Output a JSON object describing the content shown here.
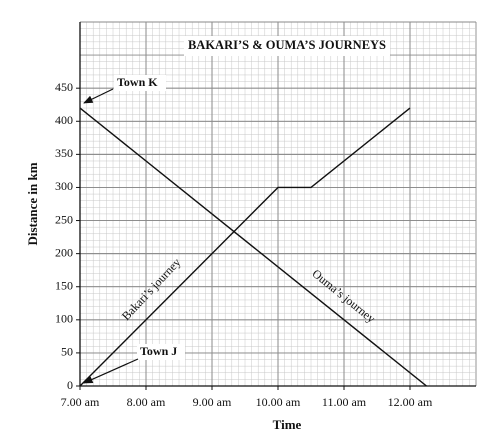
{
  "chart_data": {
    "type": "line",
    "title": "BAKARI’S & OUMA’S JOURNEYS",
    "x_label": "Time",
    "y_label": "Distance in km",
    "xlim": [
      7,
      13
    ],
    "ylim": [
      0,
      550
    ],
    "xticks": [
      {
        "value": 7,
        "label": "7.00 am"
      },
      {
        "value": 8,
        "label": "8.00 am"
      },
      {
        "value": 9,
        "label": "9.00 am"
      },
      {
        "value": 10,
        "label": "10.00 am"
      },
      {
        "value": 11,
        "label": "11.00 am"
      },
      {
        "value": 12,
        "label": "12.00 am"
      }
    ],
    "yticks": [
      0,
      50,
      100,
      150,
      200,
      250,
      300,
      350,
      400,
      450
    ],
    "grid": true,
    "series": [
      {
        "name": "Bakari’s journey",
        "color": "#111111",
        "x": [
          7,
          10,
          10.5,
          12
        ],
        "values": [
          0,
          300,
          300,
          420
        ]
      },
      {
        "name": "Ouma’s journey",
        "color": "#111111",
        "x": [
          7,
          12.25
        ],
        "values": [
          420,
          0
        ]
      }
    ],
    "annotations": [
      "Town K",
      "Town J"
    ]
  }
}
